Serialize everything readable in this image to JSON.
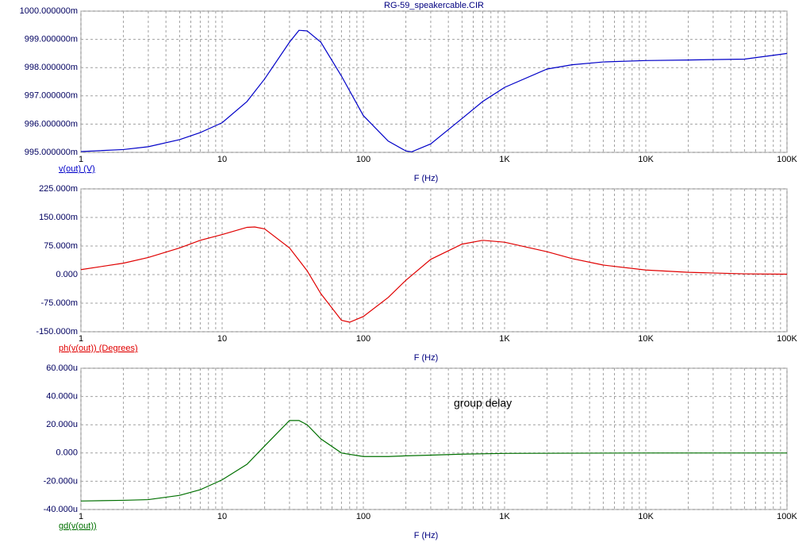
{
  "chart_data": [
    {
      "type": "line",
      "title": "RG-59_speakercable.CIR",
      "x_label": "F (Hz)",
      "x_log": true,
      "grid": true,
      "x": [
        1,
        2,
        3,
        5,
        7,
        10,
        15,
        20,
        30,
        35,
        40,
        50,
        70,
        100,
        150,
        200,
        220,
        300,
        500,
        700,
        1000,
        2000,
        3000,
        5000,
        10000,
        20000,
        50000,
        100000
      ],
      "series": [
        {
          "name": "v(out) (V)",
          "color": "#0000c8",
          "values": [
            995.03,
            995.1,
            995.2,
            995.45,
            995.7,
            996.05,
            996.8,
            997.6,
            998.9,
            999.32,
            999.3,
            998.9,
            997.7,
            996.3,
            995.4,
            995.05,
            995.02,
            995.3,
            996.2,
            996.8,
            997.3,
            997.95,
            998.1,
            998.2,
            998.25,
            998.27,
            998.3,
            998.5
          ]
        }
      ],
      "xlim": [
        1,
        100000
      ],
      "xticks": [
        1,
        10,
        100,
        {
          "value": 1000,
          "label": "1K"
        },
        {
          "value": 10000,
          "label": "10K"
        },
        {
          "value": 100000,
          "label": "100K"
        }
      ],
      "ylim": [
        995,
        1000
      ],
      "yticks": [
        {
          "value": 995,
          "label": "995.000000m"
        },
        {
          "value": 996,
          "label": "996.000000m"
        },
        {
          "value": 997,
          "label": "997.000000m"
        },
        {
          "value": 998,
          "label": "998.000000m"
        },
        {
          "value": 999,
          "label": "999.000000m"
        },
        {
          "value": 1000,
          "label": "1000.000000m"
        }
      ]
    },
    {
      "type": "line",
      "x_label": "F (Hz)",
      "x_log": true,
      "grid": true,
      "x": [
        1,
        2,
        3,
        5,
        7,
        10,
        15,
        17,
        20,
        30,
        40,
        50,
        70,
        80,
        100,
        150,
        200,
        300,
        500,
        700,
        1000,
        2000,
        3000,
        5000,
        10000,
        20000,
        50000,
        100000
      ],
      "series": [
        {
          "name": "ph(v(out)) (Degrees)",
          "color": "#e00000",
          "values": [
            13,
            30,
            45,
            70,
            90,
            105,
            124,
            125,
            120,
            70,
            10,
            -50,
            -120,
            -125,
            -110,
            -60,
            -15,
            40,
            80,
            90,
            85,
            60,
            42,
            25,
            12,
            6,
            2,
            1
          ]
        }
      ],
      "xlim": [
        1,
        100000
      ],
      "xticks": [
        1,
        10,
        100,
        {
          "value": 1000,
          "label": "1K"
        },
        {
          "value": 10000,
          "label": "10K"
        },
        {
          "value": 100000,
          "label": "100K"
        }
      ],
      "ylim": [
        -150,
        225
      ],
      "yticks": [
        {
          "value": -150,
          "label": "-150.000m"
        },
        {
          "value": -75,
          "label": "-75.000m"
        },
        {
          "value": 0,
          "label": "0.000"
        },
        {
          "value": 75,
          "label": "75.000m"
        },
        {
          "value": 150,
          "label": "150.000m"
        },
        {
          "value": 225,
          "label": "225.000m"
        }
      ]
    },
    {
      "type": "line",
      "x_label": "F (Hz)",
      "x_log": true,
      "grid": true,
      "annotation": "group delay",
      "x": [
        1,
        2,
        3,
        5,
        7,
        10,
        15,
        20,
        30,
        35,
        40,
        50,
        70,
        100,
        150,
        200,
        300,
        500,
        1000,
        10000,
        100000
      ],
      "series": [
        {
          "name": "gd(v(out))",
          "color": "#007000",
          "values": [
            -34,
            -33.5,
            -33,
            -30,
            -26,
            -19,
            -8,
            5,
            23,
            23,
            20,
            10,
            0,
            -2.5,
            -2.5,
            -2,
            -1.5,
            -0.8,
            -0.3,
            0,
            0
          ]
        }
      ],
      "xlim": [
        1,
        100000
      ],
      "xticks": [
        1,
        10,
        100,
        {
          "value": 1000,
          "label": "1K"
        },
        {
          "value": 10000,
          "label": "10K"
        },
        {
          "value": 100000,
          "label": "100K"
        }
      ],
      "ylim": [
        -40,
        60
      ],
      "yticks": [
        {
          "value": -40,
          "label": "-40.000u"
        },
        {
          "value": -20,
          "label": "-20.000u"
        },
        {
          "value": 0,
          "label": "0.000"
        },
        {
          "value": 20,
          "label": "20.000u"
        },
        {
          "value": 40,
          "label": "40.000u"
        },
        {
          "value": 60,
          "label": "60.000u"
        }
      ]
    }
  ]
}
